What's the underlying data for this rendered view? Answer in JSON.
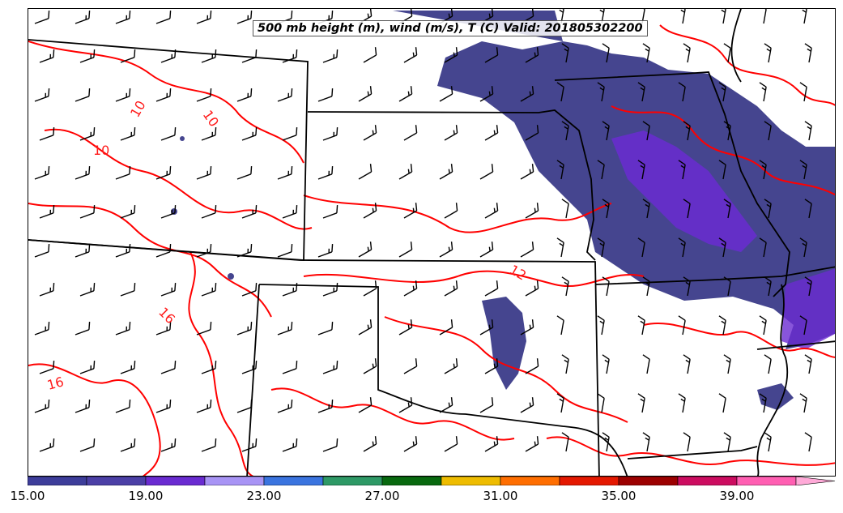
{
  "title": "500 mb height (m), wind (m/s), T (C) Valid: 201805302200",
  "colorbar": {
    "colors": [
      "#3d3d9a",
      "#4b3fa6",
      "#6a2bd1",
      "#a894f5",
      "#3a74df",
      "#2e9966",
      "#08690f",
      "#eebc00",
      "#ff6e00",
      "#e41800",
      "#9c0000",
      "#cc0c60",
      "#ff5fb2",
      "#ffaad8"
    ],
    "tick_labels": [
      "15.00",
      "19.00",
      "23.00",
      "27.00",
      "31.00",
      "35.00",
      "39.00"
    ]
  },
  "contour_labels": [
    "10",
    "10",
    "10",
    "12",
    "16",
    "16"
  ],
  "colors": {
    "temperature_contour": "#ff0000",
    "state_border": "#000000",
    "wind_barb": "#000000",
    "fill_low": "#45458f",
    "fill_mid": "#6a2bd1"
  }
}
